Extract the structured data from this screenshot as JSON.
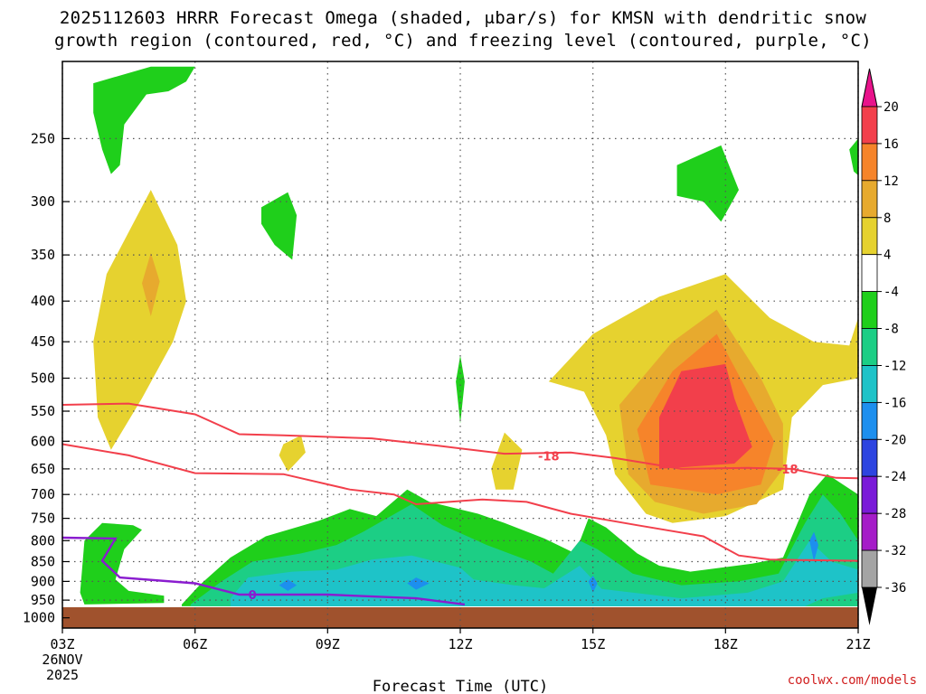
{
  "title_line1": "2025112603 HRRR Forecast Omega (shaded, μbar/s) for KMSN with dendritic snow",
  "title_line2": "growth region (contoured, red, °C) and freezing level (contoured, purple, °C)",
  "watermark": "coolwx.com/models",
  "chart_data": {
    "type": "time-height contour",
    "title": "2025112603 HRRR Forecast Omega (shaded, μbar/s) for KMSN with dendritic snow growth region (contoured, red, °C) and freezing level (contoured, purple, °C)",
    "xlabel": "Forecast Time (UTC)",
    "x_ticks": [
      "03Z",
      "06Z",
      "09Z",
      "12Z",
      "15Z",
      "18Z",
      "21Z"
    ],
    "x_tick_hours": [
      3,
      6,
      9,
      12,
      15,
      18,
      21
    ],
    "x_date_sub": [
      "26NOV",
      "2025"
    ],
    "xlim_hours": [
      3,
      21
    ],
    "y_ticks": [
      250,
      300,
      350,
      400,
      450,
      500,
      550,
      600,
      650,
      700,
      750,
      800,
      850,
      900,
      950,
      1000
    ],
    "ylim_hPa": [
      200,
      1030
    ],
    "surface_hPa": 970,
    "colorbar": {
      "levels": [
        20,
        16,
        12,
        8,
        4,
        -4,
        -8,
        -12,
        -16,
        -20,
        -24,
        -28,
        -32,
        -36
      ],
      "colors": [
        "#f23f4b",
        "#f6842a",
        "#e7aa2e",
        "#e6d22f",
        "#ffffff",
        "#1fcf1b",
        "#1cce85",
        "#1ec3c8",
        "#1d8fee",
        "#2d44e0",
        "#7a1ad8",
        "#a51cc8",
        "#a4a4a4"
      ],
      "over_color": "#e8138b",
      "under_color": "#000000"
    },
    "dgz_contour_labels": [
      "-18",
      "-18"
    ],
    "freezing_contour_label": "0",
    "ascent_maximum": {
      "time_hour": 17.5,
      "pressure_hPa": 560,
      "omega_range": "16 to 20"
    },
    "colors": {
      "dgz_line": "#f23f4b",
      "freezing_line": "#8a1ccf",
      "ground": "#a0522d"
    }
  }
}
